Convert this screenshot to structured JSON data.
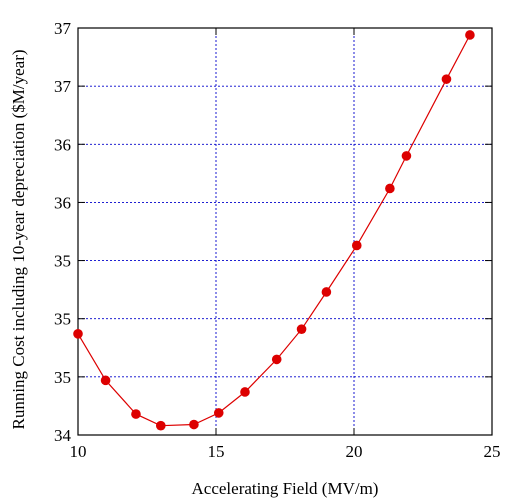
{
  "chart_data": {
    "type": "line",
    "title": "",
    "xlabel": "Accelerating Field (MV/m)",
    "ylabel": "Running Cost including 10-year depreciation ($M/year)",
    "xlim": [
      10,
      25
    ],
    "ylim": [
      34,
      37.5
    ],
    "grid": true,
    "x_ticks": [
      {
        "value": 10,
        "label": "10"
      },
      {
        "value": 15,
        "label": "15"
      },
      {
        "value": 20,
        "label": "20"
      },
      {
        "value": 25,
        "label": "25"
      }
    ],
    "y_ticks": [
      {
        "value": 34,
        "label": "34"
      },
      {
        "value": 34.5,
        "label": "35"
      },
      {
        "value": 35,
        "label": "35"
      },
      {
        "value": 35.5,
        "label": "35"
      },
      {
        "value": 36,
        "label": "36"
      },
      {
        "value": 36.5,
        "label": "36"
      },
      {
        "value": 37,
        "label": "37"
      },
      {
        "value": 37.5,
        "label": "37"
      }
    ],
    "series": [
      {
        "color": "#dd0000",
        "marker": "circle",
        "points": [
          {
            "x": 10.0,
            "y": 34.87
          },
          {
            "x": 11.0,
            "y": 34.47
          },
          {
            "x": 12.1,
            "y": 34.18
          },
          {
            "x": 13.0,
            "y": 34.08
          },
          {
            "x": 14.2,
            "y": 34.09
          },
          {
            "x": 15.1,
            "y": 34.19
          },
          {
            "x": 16.05,
            "y": 34.37
          },
          {
            "x": 17.2,
            "y": 34.65
          },
          {
            "x": 18.1,
            "y": 34.91
          },
          {
            "x": 19.0,
            "y": 35.23
          },
          {
            "x": 20.1,
            "y": 35.63
          },
          {
            "x": 21.3,
            "y": 36.12
          },
          {
            "x": 21.9,
            "y": 36.4
          },
          {
            "x": 23.35,
            "y": 37.06
          },
          {
            "x": 24.2,
            "y": 37.44
          }
        ]
      }
    ]
  }
}
